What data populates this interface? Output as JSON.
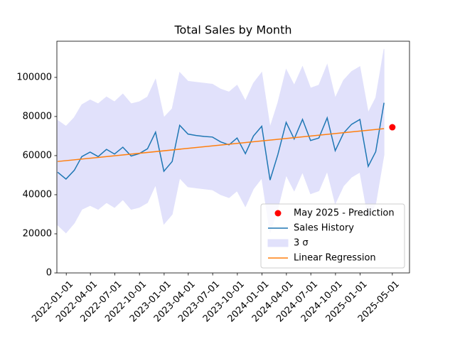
{
  "chart_data": {
    "type": "line",
    "title": "Total Sales by Month",
    "xlim": [
      "2021-11-27",
      "2025-07-04"
    ],
    "xticks": [
      "2022-01-01",
      "2022-04-01",
      "2022-07-01",
      "2022-10-01",
      "2023-01-01",
      "2023-04-01",
      "2023-07-01",
      "2023-10-01",
      "2024-01-01",
      "2024-04-01",
      "2024-07-01",
      "2024-10-01",
      "2025-01-01",
      "2025-05-01"
    ],
    "ylim": [
      0,
      118500
    ],
    "yticks": [
      0,
      20000,
      40000,
      60000,
      80000,
      100000
    ],
    "legend": "lower right",
    "series": [
      {
        "name": "May 2025 - Prediction",
        "kind": "scatter",
        "color": "#ff0000",
        "x": [
          "2025-05-01"
        ],
        "values": [
          74500
        ]
      },
      {
        "name": "Sales History",
        "kind": "line",
        "color": "#1f77b4",
        "x": [
          "2021-11-30",
          "2021-12-31",
          "2022-01-31",
          "2022-02-28",
          "2022-03-31",
          "2022-04-30",
          "2022-05-31",
          "2022-06-30",
          "2022-07-31",
          "2022-08-31",
          "2022-09-30",
          "2022-10-31",
          "2022-11-30",
          "2022-12-31",
          "2023-01-31",
          "2023-02-28",
          "2023-03-31",
          "2023-04-30",
          "2023-05-31",
          "2023-06-30",
          "2023-07-31",
          "2023-08-31",
          "2023-09-30",
          "2023-10-31",
          "2023-11-30",
          "2023-12-31",
          "2024-01-31",
          "2024-02-29",
          "2024-03-31",
          "2024-04-30",
          "2024-05-31",
          "2024-06-30",
          "2024-07-31",
          "2024-08-31",
          "2024-09-30",
          "2024-10-31",
          "2024-11-30",
          "2024-12-31",
          "2025-01-31",
          "2025-02-28",
          "2025-03-31"
        ],
        "values": [
          51500,
          48000,
          52500,
          59500,
          61800,
          59500,
          63200,
          60800,
          64300,
          59800,
          61000,
          63500,
          72000,
          52000,
          57000,
          75500,
          71000,
          70300,
          69800,
          69500,
          67000,
          65500,
          69000,
          61000,
          70000,
          75000,
          47500,
          60500,
          77000,
          68500,
          78500,
          67700,
          69000,
          79300,
          62500,
          71500,
          76000,
          78500,
          54500,
          62000,
          87000
        ]
      },
      {
        "name": "3 σ",
        "kind": "band",
        "color": "#e1e1fb",
        "x": [
          "2021-11-30",
          "2021-12-31",
          "2022-01-31",
          "2022-02-28",
          "2022-03-31",
          "2022-04-30",
          "2022-05-31",
          "2022-06-30",
          "2022-07-31",
          "2022-08-31",
          "2022-09-30",
          "2022-10-31",
          "2022-11-30",
          "2022-12-31",
          "2023-01-31",
          "2023-02-28",
          "2023-03-31",
          "2023-04-30",
          "2023-05-31",
          "2023-06-30",
          "2023-07-31",
          "2023-08-31",
          "2023-09-30",
          "2023-10-31",
          "2023-11-30",
          "2023-12-31",
          "2024-01-31",
          "2024-02-29",
          "2024-03-31",
          "2024-04-30",
          "2024-05-31",
          "2024-06-30",
          "2024-07-31",
          "2024-08-31",
          "2024-09-30",
          "2024-10-31",
          "2024-11-30",
          "2024-12-31",
          "2025-01-31",
          "2025-02-28",
          "2025-03-31"
        ],
        "upper": [
          78000,
          75000,
          79500,
          86000,
          88500,
          86500,
          90000,
          87500,
          91500,
          86500,
          87500,
          90000,
          99000,
          79500,
          84000,
          102500,
          98000,
          97500,
          97000,
          96500,
          94000,
          92500,
          96000,
          88000,
          97000,
          102500,
          74500,
          87000,
          104000,
          96000,
          105500,
          94500,
          96000,
          106500,
          89500,
          98500,
          103000,
          105500,
          82000,
          89500,
          114500
        ],
        "lower": [
          24500,
          20500,
          25500,
          32500,
          34500,
          32500,
          36000,
          33500,
          37500,
          32500,
          33500,
          36000,
          45000,
          25000,
          30000,
          48500,
          44000,
          43500,
          43000,
          42500,
          40000,
          38500,
          42000,
          34000,
          43000,
          48500,
          20500,
          33000,
          50000,
          42000,
          51500,
          40500,
          42000,
          52000,
          35500,
          44500,
          49000,
          51500,
          28000,
          35500,
          60500
        ]
      },
      {
        "name": "Linear Regression",
        "kind": "line",
        "color": "#ff7f0e",
        "x": [
          "2021-11-30",
          "2025-03-31"
        ],
        "values": [
          57000,
          73800
        ]
      }
    ]
  }
}
